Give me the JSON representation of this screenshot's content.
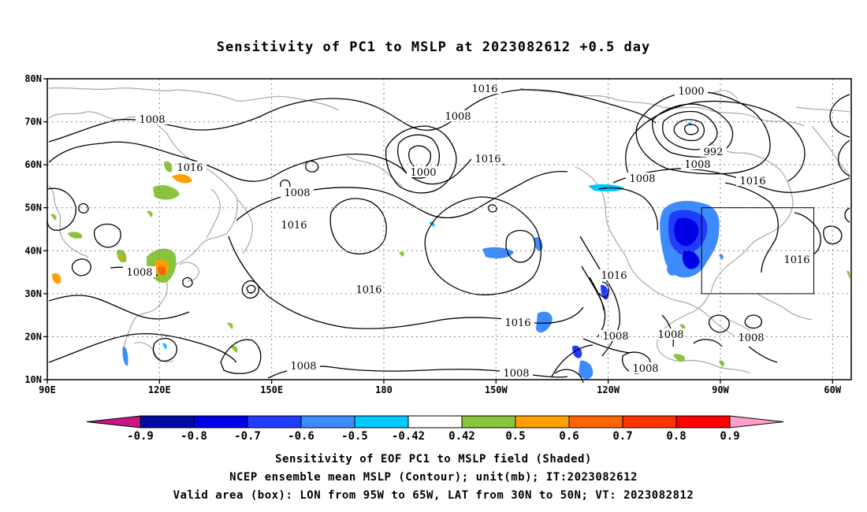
{
  "title": "Sensitivity of PC1 to MSLP at 2023082612 +0.5 day",
  "map": {
    "lon_labels": [
      "90E",
      "120E",
      "150E",
      "180",
      "150W",
      "120W",
      "90W",
      "60W"
    ],
    "lat_labels": [
      "80N",
      "70N",
      "60N",
      "50N",
      "40N",
      "30N",
      "20N",
      "10N"
    ],
    "contour_labels": [
      "1016",
      "1008",
      "1000",
      "992",
      "1016",
      "1008",
      "1000",
      "1016",
      "1008",
      "1016",
      "1016",
      "1016",
      "1008",
      "1016",
      "1016",
      "1008",
      "1016",
      "1008",
      "1008",
      "1008",
      "1008",
      "1008"
    ],
    "valid_box": {
      "lon_west": -95,
      "lon_east": -65,
      "lat_south": 30,
      "lat_north": 50
    }
  },
  "colorbar": {
    "ticks": [
      "-0.9",
      "-0.8",
      "-0.7",
      "-0.6",
      "-0.5",
      "-0.42",
      "0.42",
      "0.5",
      "0.6",
      "0.7",
      "0.8",
      "0.9"
    ],
    "colors": [
      "#c71585",
      "#000aa0",
      "#0000e6",
      "#1f3cff",
      "#3c8cff",
      "#00c8ff",
      "#ffffff",
      "#8ac43c",
      "#ffa000",
      "#ff6400",
      "#ff3200",
      "#ff0000",
      "#ff9ec8"
    ]
  },
  "captions": {
    "line1": "Sensitivity of EOF PC1 to MSLP field (Shaded)",
    "line2": "NCEP ensemble mean MSLP (Contour); unit(mb); IT:2023082612",
    "line3": "Valid area (box): LON from 95W to 65W, LAT from 30N to 50N; VT: 2023082812"
  }
}
